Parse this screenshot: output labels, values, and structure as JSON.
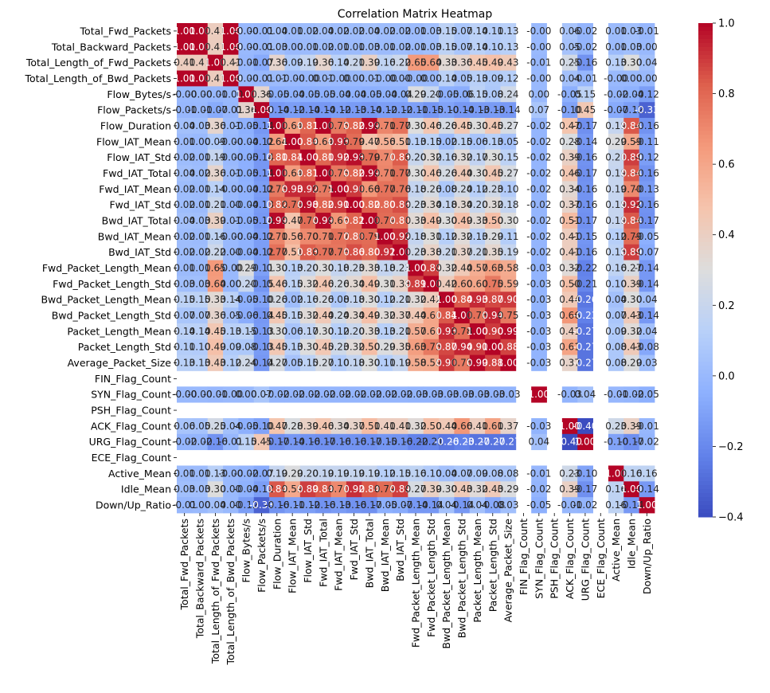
{
  "chart_data": {
    "type": "heatmap",
    "title": "Correlation Matrix Heatmap",
    "labels": [
      "Total_Fwd_Packets",
      "Total_Backward_Packets",
      "Total_Length_of_Fwd_Packets",
      "Total_Length_of_Bwd_Packets",
      "Flow_Bytes/s",
      "Flow_Packets/s",
      "Flow_Duration",
      "Flow_IAT_Mean",
      "Flow_IAT_Std",
      "Fwd_IAT_Total",
      "Fwd_IAT_Mean",
      "Fwd_IAT_Std",
      "Bwd_IAT_Total",
      "Bwd_IAT_Mean",
      "Bwd_IAT_Std",
      "Fwd_Packet_Length_Mean",
      "Fwd_Packet_Length_Std",
      "Bwd_Packet_Length_Mean",
      "Bwd_Packet_Length_Std",
      "Packet_Length_Mean",
      "Packet_Length_Std",
      "Average_Packet_Size",
      "FIN_Flag_Count",
      "SYN_Flag_Count",
      "PSH_Flag_Count",
      "ACK_Flag_Count",
      "URG_Flag_Count",
      "ECE_Flag_Count",
      "Active_Mean",
      "Idle_Mean",
      "Down/Up_Ratio"
    ],
    "matrix": [
      [
        1.0,
        1.0,
        0.41,
        1.0,
        -0.0,
        -0.01,
        0.04,
        0.01,
        0.02,
        0.04,
        0.02,
        0.02,
        0.04,
        0.02,
        0.02,
        0.01,
        0.03,
        0.15,
        0.07,
        0.14,
        0.11,
        0.13,
        null,
        -0.0,
        null,
        0.06,
        -0.02,
        null,
        0.01,
        0.03,
        -0.01
      ],
      [
        1.0,
        1.0,
        0.41,
        1.0,
        -0.0,
        -0.01,
        0.03,
        0.0,
        0.01,
        0.02,
        0.01,
        0.01,
        0.03,
        0.01,
        0.02,
        0.01,
        0.03,
        0.15,
        0.07,
        0.14,
        0.1,
        0.13,
        null,
        -0.0,
        null,
        0.05,
        -0.02,
        null,
        0.01,
        0.03,
        0.0
      ],
      [
        0.41,
        0.41,
        1.0,
        0.41,
        -0.01,
        -0.07,
        0.36,
        0.09,
        0.19,
        0.36,
        0.14,
        0.21,
        0.39,
        0.16,
        0.22,
        0.65,
        0.64,
        0.33,
        0.36,
        0.45,
        0.49,
        0.43,
        null,
        -0.01,
        null,
        0.25,
        -0.16,
        null,
        0.13,
        0.3,
        0.04
      ],
      [
        1.0,
        1.0,
        0.41,
        1.0,
        -0.0,
        -0.01,
        0.01,
        -0.0,
        -0.0,
        0.01,
        -0.0,
        0.0,
        0.01,
        -0.0,
        0.0,
        -0.0,
        0.0,
        0.14,
        0.05,
        0.13,
        0.09,
        0.12,
        null,
        -0.0,
        null,
        0.04,
        -0.01,
        null,
        -0.0,
        0.0,
        0.0
      ],
      [
        -0.0,
        -0.0,
        -0.01,
        -0.0,
        1.0,
        0.36,
        -0.05,
        -0.04,
        -0.05,
        -0.05,
        -0.04,
        -0.04,
        -0.05,
        -0.04,
        -0.04,
        0.29,
        0.2,
        -0.05,
        -0.06,
        0.15,
        0.08,
        0.24,
        null,
        0.0,
        null,
        -0.05,
        0.15,
        null,
        -0.02,
        -0.04,
        -0.12
      ],
      [
        -0.01,
        -0.01,
        -0.07,
        -0.01,
        0.36,
        1.0,
        -0.14,
        -0.12,
        -0.14,
        -0.14,
        -0.12,
        -0.13,
        -0.14,
        -0.12,
        -0.12,
        -0.11,
        -0.15,
        -0.1,
        -0.14,
        -0.13,
        -0.13,
        -0.14,
        null,
        0.07,
        null,
        -0.1,
        0.45,
        null,
        -0.07,
        -0.12,
        -0.33
      ],
      [
        0.04,
        0.03,
        0.36,
        0.01,
        -0.05,
        -0.14,
        1.0,
        0.64,
        0.81,
        1.0,
        0.75,
        0.82,
        0.99,
        0.71,
        0.77,
        0.3,
        0.46,
        0.26,
        0.45,
        0.3,
        0.45,
        0.27,
        null,
        -0.02,
        null,
        0.47,
        -0.17,
        null,
        0.19,
        0.84,
        -0.16
      ],
      [
        0.01,
        0.0,
        0.09,
        -0.0,
        -0.04,
        -0.12,
        0.64,
        1.0,
        0.84,
        0.64,
        0.93,
        0.79,
        0.47,
        0.56,
        0.51,
        0.13,
        0.15,
        0.02,
        0.15,
        0.06,
        0.13,
        0.05,
        null,
        -0.02,
        null,
        0.28,
        -0.14,
        null,
        0.29,
        0.59,
        -0.11
      ],
      [
        0.02,
        0.01,
        0.19,
        -0.0,
        -0.05,
        -0.14,
        0.81,
        0.84,
        1.0,
        0.81,
        0.92,
        0.98,
        0.79,
        0.7,
        0.83,
        0.2,
        0.32,
        0.16,
        0.32,
        0.17,
        0.3,
        0.15,
        null,
        -0.02,
        null,
        0.39,
        -0.16,
        null,
        0.2,
        0.89,
        -0.12
      ],
      [
        0.04,
        0.02,
        0.36,
        0.01,
        -0.05,
        -0.14,
        1.0,
        0.64,
        0.81,
        1.0,
        0.75,
        0.82,
        0.99,
        0.71,
        0.77,
        0.3,
        0.46,
        0.26,
        0.44,
        0.3,
        0.45,
        0.27,
        null,
        -0.02,
        null,
        0.46,
        -0.17,
        null,
        0.19,
        0.84,
        -0.16
      ],
      [
        0.02,
        0.01,
        0.14,
        -0.0,
        -0.04,
        -0.12,
        0.75,
        0.93,
        0.92,
        0.75,
        1.0,
        0.9,
        0.66,
        0.77,
        0.76,
        0.18,
        0.26,
        0.08,
        0.24,
        0.12,
        0.23,
        0.1,
        null,
        -0.02,
        null,
        0.34,
        -0.16,
        null,
        0.19,
        0.7,
        -0.13
      ],
      [
        0.02,
        0.01,
        0.21,
        0.0,
        -0.04,
        -0.13,
        0.82,
        0.79,
        0.98,
        0.82,
        0.9,
        1.0,
        0.82,
        0.8,
        0.86,
        0.23,
        0.34,
        0.18,
        0.34,
        0.2,
        0.32,
        0.18,
        null,
        -0.02,
        null,
        0.37,
        -0.16,
        null,
        0.19,
        0.92,
        -0.16
      ],
      [
        0.04,
        0.03,
        0.39,
        0.01,
        -0.05,
        -0.14,
        0.99,
        0.47,
        0.79,
        0.99,
        0.66,
        0.82,
        1.0,
        0.79,
        0.8,
        0.33,
        0.49,
        0.3,
        0.49,
        0.33,
        0.5,
        0.3,
        null,
        -0.02,
        null,
        0.51,
        -0.17,
        null,
        0.19,
        0.84,
        -0.17
      ],
      [
        0.02,
        0.01,
        0.16,
        -0.0,
        -0.04,
        -0.12,
        0.71,
        0.56,
        0.7,
        0.71,
        0.77,
        0.8,
        0.79,
        1.0,
        0.92,
        0.18,
        0.31,
        0.12,
        0.32,
        0.13,
        0.29,
        0.11,
        null,
        -0.02,
        null,
        0.41,
        -0.15,
        null,
        0.12,
        0.79,
        -0.05
      ],
      [
        0.02,
        0.02,
        0.22,
        0.0,
        -0.04,
        -0.12,
        0.77,
        0.51,
        0.83,
        0.77,
        0.76,
        0.86,
        0.8,
        0.92,
        1.0,
        0.23,
        0.38,
        0.21,
        0.37,
        0.21,
        0.35,
        0.19,
        null,
        -0.02,
        null,
        0.41,
        -0.16,
        null,
        0.15,
        0.89,
        -0.07
      ],
      [
        0.01,
        0.01,
        0.65,
        -0.0,
        0.29,
        -0.11,
        0.3,
        0.13,
        0.2,
        0.3,
        0.18,
        0.23,
        0.33,
        0.18,
        0.23,
        1.0,
        0.89,
        0.32,
        0.44,
        0.57,
        0.63,
        0.58,
        null,
        -0.03,
        null,
        0.32,
        -0.22,
        null,
        0.16,
        0.27,
        -0.14
      ],
      [
        0.03,
        0.03,
        0.64,
        0.0,
        0.2,
        -0.15,
        0.46,
        0.15,
        0.32,
        0.46,
        0.26,
        0.34,
        0.49,
        0.31,
        0.38,
        0.89,
        1.0,
        0.42,
        0.6,
        0.6,
        0.75,
        0.59,
        null,
        -0.03,
        null,
        0.5,
        -0.21,
        null,
        0.1,
        0.39,
        -0.14
      ],
      [
        0.15,
        0.15,
        0.33,
        0.14,
        -0.05,
        -0.1,
        0.26,
        0.02,
        0.16,
        0.26,
        0.08,
        0.18,
        0.3,
        0.12,
        0.21,
        0.32,
        0.42,
        1.0,
        0.84,
        0.93,
        0.87,
        0.9,
        null,
        -0.03,
        null,
        0.44,
        -0.26,
        null,
        0.04,
        0.3,
        0.04
      ],
      [
        0.07,
        0.07,
        0.36,
        0.05,
        -0.06,
        -0.14,
        0.45,
        0.15,
        0.32,
        0.44,
        0.24,
        0.34,
        0.49,
        0.32,
        0.37,
        0.44,
        0.6,
        0.84,
        1.0,
        0.78,
        0.94,
        0.75,
        null,
        -0.03,
        null,
        0.66,
        -0.23,
        null,
        0.07,
        0.43,
        -0.14
      ],
      [
        0.14,
        0.14,
        0.45,
        0.13,
        0.15,
        -0.13,
        0.3,
        0.06,
        0.17,
        0.3,
        0.12,
        0.2,
        0.33,
        0.13,
        0.21,
        0.57,
        0.6,
        0.93,
        0.78,
        1.0,
        0.9,
        0.99,
        null,
        -0.03,
        null,
        0.41,
        -0.27,
        null,
        0.09,
        0.32,
        0.04
      ],
      [
        0.11,
        0.1,
        0.49,
        0.09,
        0.08,
        -0.13,
        0.45,
        0.13,
        0.3,
        0.45,
        0.23,
        0.32,
        0.5,
        0.29,
        0.35,
        0.63,
        0.75,
        0.87,
        0.94,
        0.9,
        1.0,
        0.88,
        null,
        -0.03,
        null,
        0.61,
        -0.27,
        null,
        0.08,
        0.43,
        -0.08
      ],
      [
        0.13,
        0.13,
        0.43,
        0.12,
        0.24,
        -0.14,
        0.27,
        0.05,
        0.15,
        0.27,
        0.1,
        0.18,
        0.3,
        0.11,
        0.19,
        0.58,
        0.59,
        0.9,
        0.75,
        0.99,
        0.88,
        1.0,
        null,
        -0.03,
        null,
        0.37,
        -0.27,
        null,
        0.08,
        0.29,
        0.03
      ],
      [
        null,
        null,
        null,
        null,
        null,
        null,
        null,
        null,
        null,
        null,
        null,
        null,
        null,
        null,
        null,
        null,
        null,
        null,
        null,
        null,
        null,
        null,
        null,
        null,
        null,
        null,
        null,
        null,
        null,
        null,
        null
      ],
      [
        -0.0,
        -0.0,
        -0.01,
        -0.0,
        0.0,
        0.07,
        -0.02,
        -0.02,
        -0.02,
        -0.02,
        -0.02,
        -0.02,
        -0.02,
        -0.02,
        -0.02,
        -0.03,
        -0.03,
        -0.03,
        -0.03,
        -0.03,
        -0.03,
        -0.03,
        null,
        1.0,
        null,
        -0.03,
        0.04,
        null,
        -0.01,
        -0.02,
        -0.05
      ],
      [
        null,
        null,
        null,
        null,
        null,
        null,
        null,
        null,
        null,
        null,
        null,
        null,
        null,
        null,
        null,
        null,
        null,
        null,
        null,
        null,
        null,
        null,
        null,
        null,
        null,
        null,
        null,
        null,
        null,
        null,
        null
      ],
      [
        0.06,
        0.05,
        0.25,
        0.04,
        -0.05,
        -0.1,
        0.47,
        0.28,
        0.39,
        0.46,
        0.34,
        0.37,
        0.51,
        0.41,
        0.41,
        0.32,
        0.5,
        0.44,
        0.66,
        0.41,
        0.61,
        0.37,
        null,
        -0.03,
        null,
        1.0,
        -0.4,
        null,
        0.23,
        0.39,
        -0.01
      ],
      [
        -0.02,
        -0.02,
        -0.16,
        -0.01,
        0.15,
        0.45,
        -0.17,
        -0.14,
        -0.16,
        -0.17,
        -0.16,
        -0.16,
        -0.17,
        -0.15,
        -0.16,
        -0.22,
        -0.21,
        -0.26,
        -0.23,
        -0.27,
        -0.27,
        -0.27,
        null,
        0.04,
        null,
        -0.4,
        1.0,
        null,
        -0.1,
        -0.17,
        -0.02
      ],
      [
        null,
        null,
        null,
        null,
        null,
        null,
        null,
        null,
        null,
        null,
        null,
        null,
        null,
        null,
        null,
        null,
        null,
        null,
        null,
        null,
        null,
        null,
        null,
        null,
        null,
        null,
        null,
        null,
        null,
        null,
        null
      ],
      [
        0.01,
        0.01,
        0.13,
        -0.0,
        -0.02,
        -0.07,
        0.19,
        0.29,
        0.2,
        0.19,
        0.19,
        0.19,
        0.19,
        0.12,
        0.15,
        0.16,
        0.1,
        0.04,
        0.07,
        0.09,
        0.08,
        0.08,
        null,
        -0.01,
        null,
        0.23,
        -0.1,
        null,
        1.0,
        0.16,
        0.16
      ],
      [
        0.03,
        0.03,
        0.3,
        0.0,
        -0.04,
        -0.12,
        0.84,
        0.59,
        0.89,
        0.84,
        0.7,
        0.92,
        0.84,
        0.79,
        0.89,
        0.27,
        0.39,
        0.3,
        0.43,
        0.32,
        0.43,
        0.29,
        null,
        -0.02,
        null,
        0.39,
        -0.17,
        null,
        0.16,
        1.0,
        -0.14
      ],
      [
        -0.01,
        0.0,
        0.04,
        0.0,
        -0.12,
        -0.33,
        -0.16,
        -0.11,
        -0.12,
        -0.16,
        -0.13,
        -0.16,
        -0.17,
        -0.05,
        -0.07,
        -0.14,
        -0.14,
        0.04,
        -0.14,
        0.04,
        -0.08,
        0.03,
        null,
        -0.05,
        null,
        -0.01,
        -0.02,
        null,
        0.16,
        -0.14,
        1.0
      ]
    ],
    "vmin": -0.4,
    "vmax": 1.0,
    "colormap": "coolwarm",
    "colorbar_ticks": [
      -0.4,
      -0.2,
      0.0,
      0.2,
      0.4,
      0.6,
      0.8,
      1.0
    ],
    "colorbar_tick_labels": [
      "−0.4",
      "−0.2",
      "0.0",
      "0.2",
      "0.4",
      "0.6",
      "0.8",
      "1.0"
    ],
    "annotation_format": "2 decimals"
  }
}
